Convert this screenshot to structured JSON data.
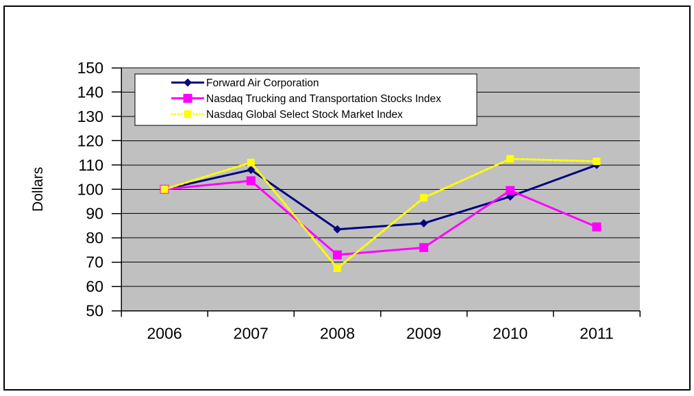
{
  "chart_data": {
    "type": "line",
    "title": "",
    "ylabel": "Dollars",
    "xlabel": "",
    "ylim": [
      50,
      150
    ],
    "yticks": [
      50,
      60,
      70,
      80,
      90,
      100,
      110,
      120,
      130,
      140,
      150
    ],
    "grid": true,
    "legend_position": "top-inside",
    "plot_bg": "#c0c0c0",
    "axis_color": "#000000",
    "frame_color": "#000000",
    "categories": [
      "2006",
      "2007",
      "2008",
      "2009",
      "2010",
      "2011"
    ],
    "series": [
      {
        "name": "Forward Air Corporation",
        "color": "#000080",
        "marker": "diamond",
        "marker_size": 12,
        "line_style": "solid",
        "values": [
          100,
          108,
          83.5,
          86,
          97,
          110
        ]
      },
      {
        "name": "Nasdaq Trucking and Transportation Stocks Index",
        "color": "#ff00ff",
        "marker": "square",
        "marker_size": 13,
        "line_style": "solid",
        "values": [
          100,
          103.5,
          73,
          76,
          99.5,
          84.5
        ]
      },
      {
        "name": "Nasdaq Global Select Stock Market Index",
        "color": "#ffff00",
        "marker": "square",
        "marker_size": 11,
        "line_style": "dashed",
        "values": [
          100,
          111,
          67.5,
          96.5,
          112.5,
          111.5
        ]
      }
    ]
  }
}
